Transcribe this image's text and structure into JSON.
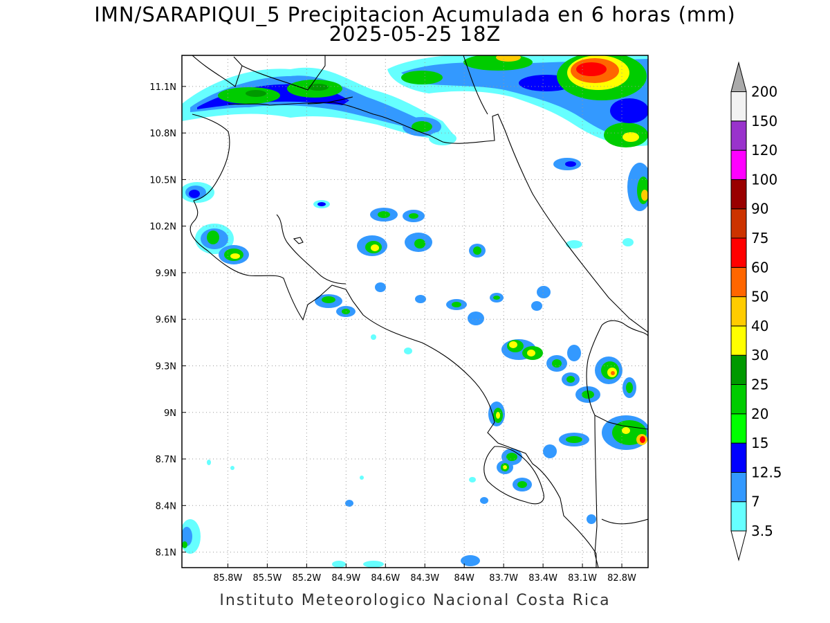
{
  "title_line1": "IMN/SARAPIQUI_5 Precipitacion Acumulada en 6 horas (mm)",
  "title_line2": "2025-05-25 18Z",
  "footer": "Instituto Meteorologico Nacional Costa Rica",
  "map": {
    "lon_range": [
      -86.15,
      -82.6
    ],
    "lat_range": [
      8.0,
      11.3
    ],
    "lon_ticks": [
      "85.8W",
      "85.5W",
      "85.2W",
      "84.9W",
      "84.6W",
      "84.3W",
      "84W",
      "83.7W",
      "83.4W",
      "83.1W",
      "82.8W"
    ],
    "lat_ticks": [
      "11.1N",
      "10.8N",
      "10.5N",
      "10.2N",
      "9.9N",
      "9.6N",
      "9.3N",
      "9N",
      "8.7N",
      "8.4N",
      "8.1N"
    ],
    "grid": "dotted"
  },
  "colorbar": {
    "orientation": "vertical",
    "levels": [
      "3.5",
      "7",
      "12.5",
      "15",
      "20",
      "25",
      "30",
      "40",
      "50",
      "60",
      "75",
      "90",
      "100",
      "120",
      "150",
      "200"
    ],
    "colors": [
      "#ffffff",
      "#66ffff",
      "#3399ff",
      "#0000ff",
      "#00ff00",
      "#00cc00",
      "#009900",
      "#ffff00",
      "#ffcc00",
      "#ff6600",
      "#ff0000",
      "#cc3300",
      "#990000",
      "#ff00ff",
      "#9933cc",
      "#f2f2f2",
      "#aaaaaa"
    ]
  }
}
